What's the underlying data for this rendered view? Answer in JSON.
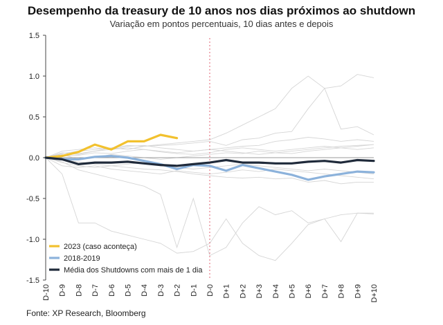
{
  "title": "Desempenho da treasury de 10 anos nos dias próximos ao shutdown",
  "subtitle": "Variação em pontos percentuais, 10 dias antes e depois",
  "source": "Fonte: XP Research, Bloomberg",
  "chart_data": {
    "type": "line",
    "categories": [
      "D-10",
      "D-9",
      "D-8",
      "D-7",
      "D-6",
      "D-5",
      "D-4",
      "D-3",
      "D-2",
      "D-1",
      "D-0",
      "D+1",
      "D+2",
      "D+3",
      "D+4",
      "D+5",
      "D+6",
      "D+7",
      "D+8",
      "D+9",
      "D+10"
    ],
    "ylim": [
      -1.5,
      1.5
    ],
    "yticks": [
      1.5,
      1.0,
      0.5,
      0.0,
      -0.5,
      -1.0,
      -1.5
    ],
    "ytick_labels": [
      "1.5",
      "1.0",
      "0.5",
      "0.0",
      "-0.5",
      "-1.0",
      "-1.5"
    ],
    "grid": false,
    "vline_category": "D-0",
    "legend_position": "bottom-left",
    "series": [
      {
        "name": "2023 (caso aconteça)",
        "color": "#f2c12e",
        "values": [
          0.0,
          0.02,
          0.07,
          0.16,
          0.1,
          0.2,
          0.2,
          0.28,
          0.24,
          null,
          null,
          null,
          null,
          null,
          null,
          null,
          null,
          null,
          null,
          null,
          null
        ]
      },
      {
        "name": "2018-2019",
        "color": "#8cb2db",
        "values": [
          0.0,
          -0.02,
          -0.02,
          0.01,
          0.02,
          0.0,
          -0.04,
          -0.08,
          -0.14,
          -0.09,
          -0.1,
          -0.16,
          -0.09,
          -0.13,
          -0.17,
          -0.21,
          -0.27,
          -0.23,
          -0.2,
          -0.17,
          -0.18
        ]
      },
      {
        "name": "Média dos Shutdowns com mais de 1 dia",
        "color": "#1f2a3a",
        "values": [
          0.0,
          -0.02,
          -0.08,
          -0.06,
          -0.06,
          -0.05,
          -0.07,
          -0.09,
          -0.1,
          -0.08,
          -0.06,
          -0.03,
          -0.06,
          -0.06,
          -0.07,
          -0.07,
          -0.05,
          -0.04,
          -0.06,
          -0.03,
          -0.04
        ]
      }
    ],
    "background_series_color": "#d5d5d5",
    "background_series": [
      [
        0.0,
        0.05,
        0.08,
        0.1,
        0.12,
        0.15,
        0.14,
        0.16,
        0.18,
        0.2,
        0.22,
        0.3,
        0.4,
        0.5,
        0.6,
        0.85,
        1.0,
        0.85,
        0.88,
        1.02,
        0.98
      ],
      [
        0.0,
        -0.05,
        -0.15,
        -0.2,
        -0.25,
        -0.3,
        -0.35,
        -0.45,
        -1.1,
        -0.5,
        -1.2,
        -1.1,
        -0.8,
        -0.6,
        -0.7,
        -0.65,
        -0.8,
        -0.75,
        -0.7,
        -0.68,
        -0.68
      ],
      [
        0.0,
        -0.2,
        -0.8,
        -0.8,
        -0.9,
        -0.95,
        -1.0,
        -1.05,
        -1.17,
        -1.15,
        -1.05,
        -0.75,
        -1.05,
        -1.2,
        -1.26,
        -1.05,
        -0.82,
        -0.75,
        -1.03,
        -0.68,
        -0.69
      ],
      [
        0.0,
        0.03,
        0.05,
        0.08,
        0.12,
        0.1,
        0.14,
        0.15,
        0.16,
        0.18,
        0.2,
        0.15,
        0.22,
        0.24,
        0.3,
        0.32,
        0.6,
        0.85,
        0.35,
        0.38,
        0.28
      ],
      [
        0.0,
        0.08,
        0.1,
        0.12,
        0.1,
        0.14,
        0.15,
        0.12,
        0.1,
        0.08,
        0.1,
        0.12,
        0.14,
        0.15,
        0.2,
        0.22,
        0.25,
        0.23,
        0.2,
        0.22,
        0.2
      ],
      [
        0.0,
        -0.03,
        -0.05,
        -0.08,
        -0.1,
        -0.12,
        -0.14,
        -0.15,
        -0.17,
        -0.2,
        -0.22,
        -0.24,
        -0.25,
        -0.24,
        -0.26,
        -0.25,
        -0.3,
        -0.28,
        -0.32,
        -0.3,
        -0.3
      ],
      [
        0.0,
        0.02,
        0.03,
        0.06,
        0.05,
        0.08,
        0.1,
        0.07,
        0.05,
        0.04,
        0.06,
        0.1,
        0.12,
        0.1,
        0.08,
        0.1,
        0.12,
        0.14,
        0.12,
        0.1,
        0.12
      ],
      [
        0.0,
        -0.1,
        -0.12,
        -0.1,
        -0.14,
        -0.16,
        -0.18,
        -0.2,
        -0.16,
        -0.18,
        -0.2,
        -0.18,
        -0.15,
        -0.17,
        -0.14,
        -0.16,
        -0.18,
        -0.2,
        -0.22,
        -0.24,
        -0.26
      ],
      [
        0.0,
        0.04,
        -0.02,
        0.0,
        0.04,
        0.02,
        0.0,
        -0.02,
        0.0,
        0.02,
        0.04,
        0.06,
        0.05,
        0.08,
        0.06,
        0.05,
        0.08,
        0.1,
        0.12,
        0.14,
        0.16
      ],
      [
        0.0,
        -0.06,
        -0.1,
        -0.12,
        -0.1,
        -0.08,
        -0.06,
        -0.1,
        -0.12,
        -0.14,
        -0.12,
        -0.1,
        -0.08,
        -0.1,
        -0.12,
        -0.14,
        -0.16,
        -0.14,
        -0.16,
        -0.18,
        -0.2
      ],
      [
        0.0,
        0.06,
        0.04,
        0.08,
        0.1,
        0.12,
        0.1,
        0.08,
        0.06,
        0.08,
        0.1,
        0.08,
        0.06,
        0.04,
        0.06,
        0.08,
        0.1,
        0.12,
        0.14,
        0.15,
        0.16
      ]
    ]
  }
}
